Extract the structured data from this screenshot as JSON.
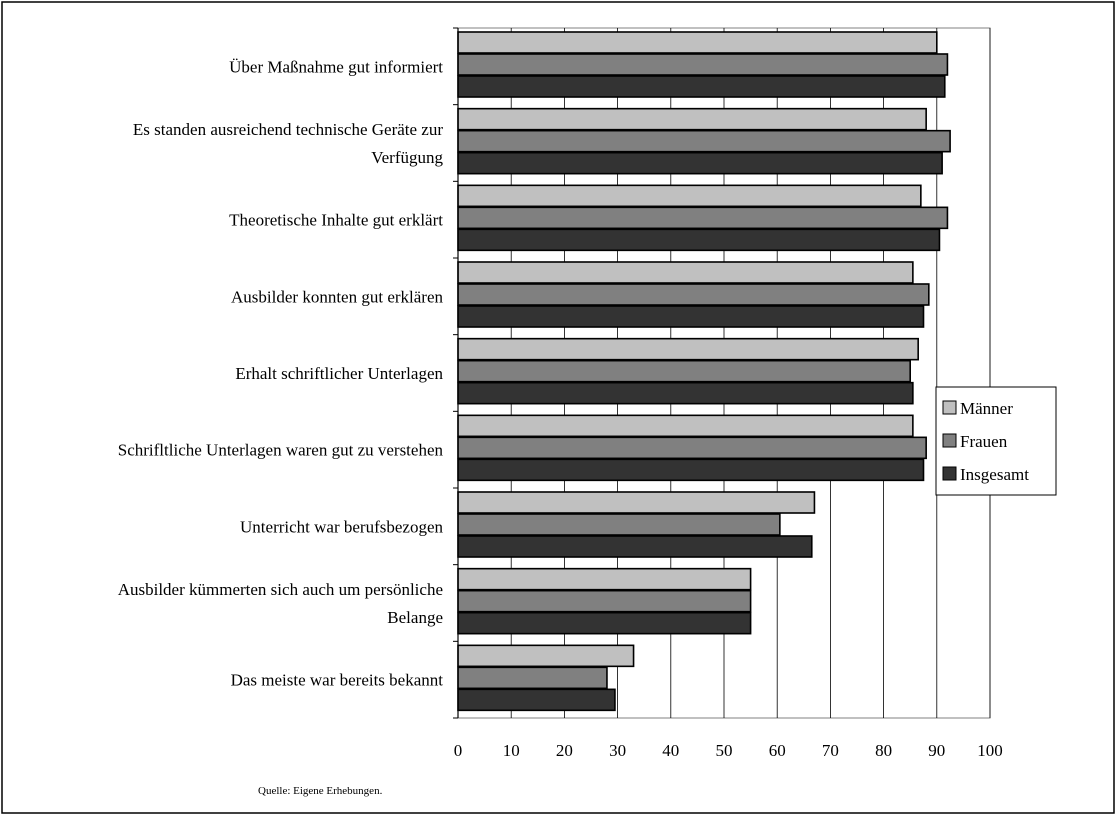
{
  "chart_data": {
    "type": "bar",
    "orientation": "horizontal",
    "categories": [
      [
        "Über Maßnahme gut informiert"
      ],
      [
        "Es standen ausreichend technische Geräte zur",
        "Verfügung"
      ],
      [
        "Theoretische Inhalte gut erklärt"
      ],
      [
        "Ausbilder konnten gut erklären"
      ],
      [
        "Erhalt schriftlicher Unterlagen"
      ],
      [
        "Schrifltliche Unterlagen waren gut zu verstehen"
      ],
      [
        "Unterricht war berufsbezogen"
      ],
      [
        "Ausbilder kümmerten sich auch um persönliche",
        "Belange"
      ],
      [
        "Das meiste war bereits bekannt"
      ]
    ],
    "series": [
      {
        "name": "Männer",
        "color": "#c0c0c0",
        "values": [
          90,
          88,
          87,
          85.5,
          86.5,
          85.5,
          67,
          55,
          33
        ]
      },
      {
        "name": "Frauen",
        "color": "#808080",
        "values": [
          92,
          92.5,
          92,
          88.5,
          85,
          88,
          60.5,
          55,
          28
        ]
      },
      {
        "name": "Insgesamt",
        "color": "#333333",
        "values": [
          91.5,
          91,
          90.5,
          87.5,
          85.5,
          87.5,
          66.5,
          55,
          29.5
        ]
      }
    ],
    "xlim": [
      0,
      100
    ],
    "xticks": [
      0,
      10,
      20,
      30,
      40,
      50,
      60,
      70,
      80,
      90,
      100
    ],
    "grid": true,
    "legend_position": "right",
    "source": "Quelle: Eigene Erhebungen."
  }
}
